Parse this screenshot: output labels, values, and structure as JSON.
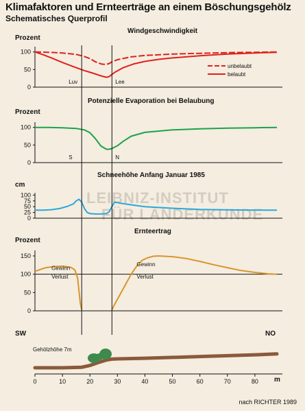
{
  "title": "Klimafaktoren und Ernteerträge an einem Böschungsgehölz",
  "subtitle": "Schematisches Querprofil",
  "source": "nach RICHTER 1989",
  "watermark": [
    "LEIBNIZ-INSTITUT",
    "FÜR LÄNDERKUNDE"
  ],
  "colors": {
    "background": "#f4ede0",
    "wind": "#e0201b",
    "evaporation": "#1aa34a",
    "snow": "#2aa7dc",
    "yield": "#d9952b",
    "ground": "#8a5a3a",
    "trees": "#3d8a4c"
  },
  "chart_data": [
    {
      "type": "line",
      "title": "Windgeschwindigkeit",
      "ylabel": "Prozent",
      "yticks": [
        0,
        50,
        100
      ],
      "ylim": [
        0,
        115
      ],
      "markers": [
        {
          "x": 17,
          "label": "Luv"
        },
        {
          "x": 29,
          "label": "Lee"
        }
      ],
      "legend": "right",
      "series": [
        {
          "name": "unbelaubt",
          "style": "dashed",
          "x": [
            0,
            5,
            10,
            15,
            18,
            20,
            22,
            24,
            25,
            26,
            27,
            28,
            30,
            35,
            40,
            50,
            60,
            70,
            80,
            88
          ],
          "y": [
            100,
            99,
            97,
            93,
            87,
            81,
            72,
            66,
            65,
            65,
            67,
            72,
            78,
            86,
            90,
            94,
            96,
            98,
            99,
            100
          ]
        },
        {
          "name": "belaubt",
          "style": "solid",
          "x": [
            0,
            3,
            6,
            10,
            14,
            18,
            21,
            24,
            26,
            27,
            29,
            32,
            36,
            40,
            45,
            50,
            60,
            70,
            80,
            88
          ],
          "y": [
            100,
            92,
            83,
            70,
            58,
            47,
            40,
            32,
            28,
            30,
            42,
            55,
            66,
            73,
            79,
            83,
            89,
            94,
            97,
            99
          ]
        }
      ]
    },
    {
      "type": "line",
      "title": "Potenzielle Evaporation bei Belaubung",
      "ylabel": "Prozent",
      "yticks": [
        0,
        50,
        100
      ],
      "ylim": [
        0,
        115
      ],
      "markers": [
        {
          "x": 17,
          "label": "S"
        },
        {
          "x": 29,
          "label": "N"
        }
      ],
      "series": [
        {
          "name": "Evaporation",
          "x": [
            0,
            5,
            10,
            15,
            18,
            20,
            22,
            24,
            26,
            27,
            28,
            30,
            32,
            35,
            40,
            50,
            60,
            70,
            80,
            88
          ],
          "y": [
            100,
            100,
            99,
            97,
            93,
            85,
            68,
            47,
            38,
            38,
            40,
            48,
            60,
            75,
            86,
            93,
            96,
            98,
            99,
            100
          ]
        }
      ]
    },
    {
      "type": "line",
      "title": "Schneehöhe Anfang Januar 1985",
      "ylabel": "cm",
      "yticks": [
        0,
        25,
        50,
        75,
        100
      ],
      "ylim": [
        0,
        110
      ],
      "series": [
        {
          "name": "Schneehöhe",
          "x": [
            0,
            3,
            6,
            9,
            12,
            14,
            15,
            16,
            17,
            18,
            19,
            20,
            22,
            24,
            26,
            27,
            28,
            29,
            31,
            35,
            40,
            50,
            60,
            70,
            80,
            88
          ],
          "y": [
            35,
            35,
            37,
            42,
            52,
            62,
            75,
            82,
            70,
            42,
            25,
            20,
            18,
            18,
            20,
            28,
            50,
            70,
            65,
            58,
            50,
            43,
            38,
            36,
            35,
            35
          ]
        }
      ]
    },
    {
      "type": "line",
      "title": "Ernteertrag",
      "ylabel": "Prozent",
      "yticks": [
        0,
        50,
        100,
        150
      ],
      "ylim": [
        0,
        165
      ],
      "baseline": 100,
      "annotations": [
        {
          "x": 6,
          "y": 112,
          "text": "Gewinn"
        },
        {
          "x": 6,
          "y": 88,
          "text": "Verlust"
        },
        {
          "x": 37,
          "y": 122,
          "text": "Gewinn"
        },
        {
          "x": 37,
          "y": 88,
          "text": "Verlust"
        }
      ],
      "series": [
        {
          "name": "Ertrag links",
          "x": [
            0,
            2,
            4,
            7,
            10,
            13,
            14.5,
            15.5,
            16,
            16.5,
            17
          ],
          "y": [
            108,
            113,
            118,
            121,
            122,
            119,
            112,
            90,
            55,
            20,
            3
          ]
        },
        {
          "name": "Ertrag rechts",
          "x": [
            28,
            29,
            31,
            33,
            35,
            37,
            39,
            41,
            43,
            45,
            50,
            55,
            60,
            65,
            70,
            75,
            80,
            85,
            88
          ],
          "y": [
            3,
            18,
            45,
            73,
            100,
            122,
            138,
            145,
            149,
            150,
            148,
            143,
            135,
            126,
            118,
            110,
            105,
            101,
            100
          ]
        }
      ]
    },
    {
      "type": "area",
      "title": "Gehölzhöhe 7m",
      "xlabel": "m",
      "xticks": [
        0,
        10,
        20,
        30,
        40,
        50,
        60,
        70,
        80
      ],
      "xlim": [
        0,
        90
      ],
      "side_labels": [
        "SW",
        "NO"
      ],
      "series": [
        {
          "name": "Geländeprofil",
          "x": [
            0,
            10,
            17,
            20,
            23,
            26,
            28,
            30,
            40,
            50,
            60,
            70,
            80,
            88
          ],
          "y": [
            0.0,
            0.0,
            0.2,
            0.8,
            1.8,
            2.7,
            3.0,
            3.1,
            3.3,
            3.6,
            3.9,
            4.2,
            4.5,
            4.8
          ]
        }
      ]
    }
  ]
}
